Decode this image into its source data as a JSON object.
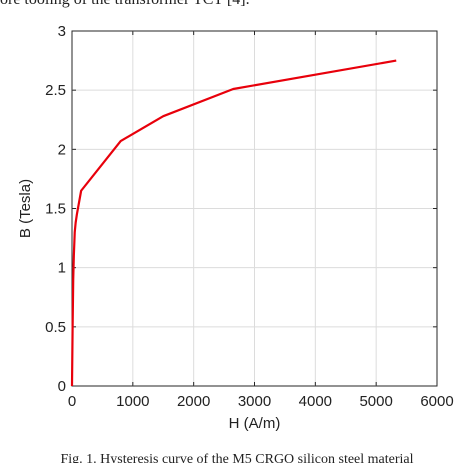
{
  "page": {
    "top_text": "ore tooling of the transformer TCT [4].",
    "caption": "Fig. 1.  Hysteresis curve of the M5 CRGO silicon steel material"
  },
  "chart_data": {
    "type": "line",
    "title": "",
    "xlabel": "H (A/m)",
    "ylabel": "B (Tesla)",
    "xlim": [
      0,
      6000
    ],
    "ylim": [
      0,
      3
    ],
    "xticks": [
      0,
      1000,
      2000,
      3000,
      4000,
      5000,
      6000
    ],
    "yticks": [
      0,
      0.5,
      1,
      1.5,
      2,
      2.5,
      3
    ],
    "xtick_labels": [
      "0",
      "1000",
      "2000",
      "3000",
      "4000",
      "5000",
      "6000"
    ],
    "ytick_labels": [
      "0",
      "0.5",
      "1",
      "1.5",
      "2",
      "2.5",
      "3"
    ],
    "grid": true,
    "line_color": "#e8000b",
    "series": [
      {
        "x": [
          0,
          10,
          20,
          30,
          45,
          60,
          80,
          150,
          800,
          1500,
          2650,
          5330
        ],
        "y": [
          0,
          0.5,
          0.9,
          1.1,
          1.3,
          1.38,
          1.45,
          1.65,
          2.07,
          2.28,
          2.51,
          2.75
        ]
      }
    ]
  }
}
